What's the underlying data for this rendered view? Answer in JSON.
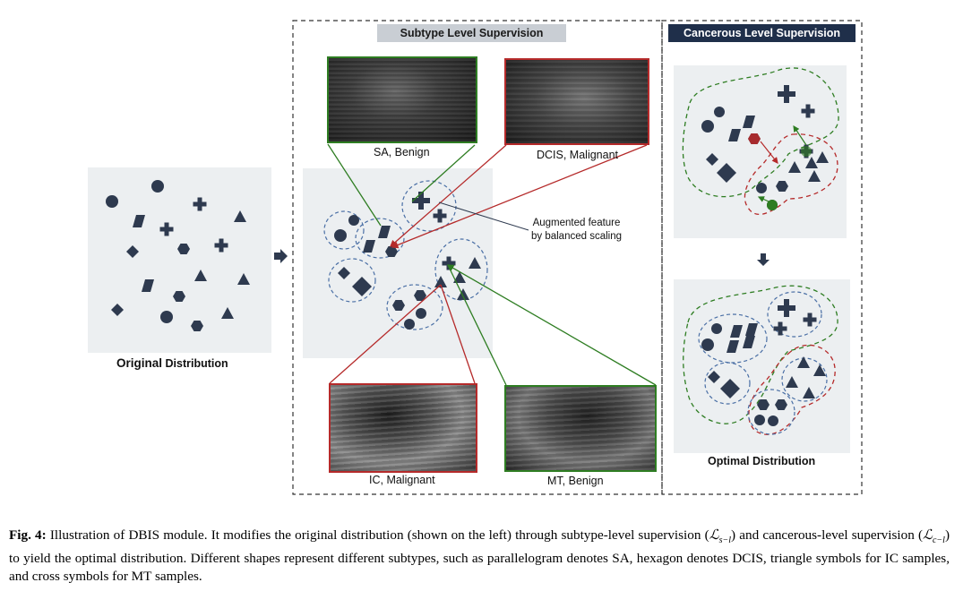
{
  "figure": {
    "original_label_bold": "Original",
    "original_label_rest": " Distribution",
    "subtype_header": "Subtype Level Supervision",
    "cancerous_header": "Cancerous Level Supervision",
    "image_labels": {
      "sa": "SA, Benign",
      "dcis": "DCIS, Malignant",
      "ic": "IC, Malignant",
      "mt": "MT, Benign"
    },
    "augmented_note_line1": "Augmented feature",
    "augmented_note_line2": "by balanced scaling",
    "optimal_label": "Optimal Distribution",
    "colors": {
      "shape": "#2e3a4f",
      "panel": "#eceff1",
      "green": "#2e7d22",
      "red": "#b52a2a",
      "blue_dash": "#4a6fa5",
      "header_gray": "#c9ced4",
      "header_dark": "#1f2f4a"
    }
  },
  "caption": {
    "fig_label": "Fig. 4:",
    "text1": " Illustration of DBIS module.  It modifies the original distribution (shown on the left) through subtype-level supervision (",
    "loss_s": "ℒ",
    "loss_s_sub": "s−l",
    "text2": ") and cancerous-level supervision (",
    "loss_c": "ℒ",
    "loss_c_sub": "c−l",
    "text3": ") to yield the optimal distribution. Different shapes represent different subtypes, such as parallelogram denotes SA, hexagon denotes DCIS, triangle symbols for IC samples, and cross symbols for MT samples."
  }
}
